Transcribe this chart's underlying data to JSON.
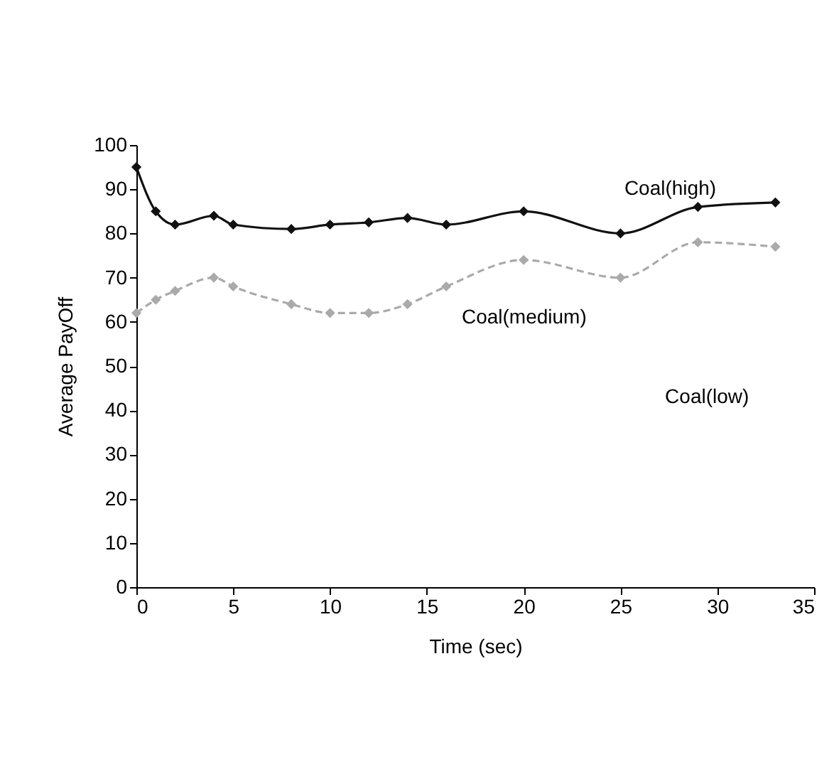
{
  "chart_data": {
    "type": "line",
    "xlabel": "Time (sec)",
    "ylabel": "Average PayOff",
    "xlim": [
      0,
      35
    ],
    "xticks": [
      0,
      5,
      10,
      15,
      20,
      25,
      30,
      35
    ],
    "ylim": [
      0,
      100
    ],
    "yticks": [
      0,
      10,
      20,
      30,
      40,
      50,
      60,
      70,
      80,
      90,
      100
    ],
    "grid": false,
    "marker": "diamond",
    "series": [
      {
        "name": "Coal(high)",
        "color": "#111111",
        "line_style": "solid",
        "x": [
          0,
          1,
          2,
          4,
          5,
          8,
          10,
          12,
          14,
          16,
          20,
          25,
          29,
          33
        ],
        "values": [
          95,
          85,
          82,
          84,
          82,
          81,
          82,
          82.5,
          83.5,
          82,
          85,
          80,
          86,
          87
        ]
      },
      {
        "name": "Coal(medium)",
        "color": "#aaaaaa",
        "line_style": "dashed",
        "x": [
          0,
          1,
          2,
          4,
          5,
          8,
          10,
          12,
          14,
          16,
          20,
          25,
          29,
          33
        ],
        "values": [
          62,
          65,
          67,
          70,
          68,
          64,
          62,
          62,
          64,
          68,
          74,
          70,
          78,
          77
        ]
      }
    ],
    "annotations": [
      "Coal(low)"
    ]
  }
}
